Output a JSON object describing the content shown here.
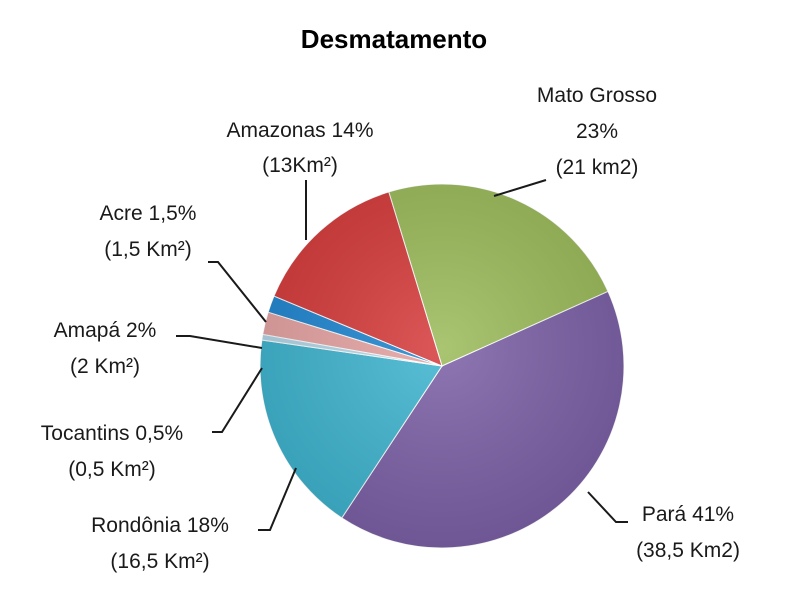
{
  "chart_data": {
    "type": "pie",
    "title": "Desmatamento",
    "slices": [
      {
        "label": "Mato Grosso",
        "percent": 23,
        "area_text": "(21 km2)",
        "percent_text": "23%",
        "color": "#9BBB59"
      },
      {
        "label": "Pará",
        "percent": 41,
        "area_text": "(38,5 Km2)",
        "percent_text": "41%",
        "color": "#7B5FA6"
      },
      {
        "label": "Rondônia",
        "percent": 18,
        "area_text": "(16,5 Km²)",
        "percent_text": "18%",
        "color": "#3DB4CF"
      },
      {
        "label": "Tocantins",
        "percent": 0.5,
        "area_text": "(0,5 Km²)",
        "percent_text": "0,5%",
        "color": "#B3D7E8"
      },
      {
        "label": "Amapá",
        "percent": 2,
        "area_text": "(2 Km²)",
        "percent_text": "2%",
        "color": "#E6A3A3"
      },
      {
        "label": "Acre",
        "percent": 1.5,
        "area_text": "(1,5 Km²)",
        "percent_text": "1,5%",
        "color": "#1F86D1"
      },
      {
        "label": "Amazonas",
        "percent": 14,
        "area_text": "(13Km²)",
        "percent_text": "14%",
        "color": "#D63A3A"
      }
    ],
    "labels": {
      "mato_grosso_l1": "Mato Grosso",
      "mato_grosso_l2": "23%",
      "mato_grosso_l3": "(21 km2)",
      "amazonas_l1": "Amazonas 14%",
      "amazonas_l2": "(13Km²)",
      "acre_l1": "Acre 1,5%",
      "acre_l2": "(1,5 Km²)",
      "amapa_l1": "Amapá 2%",
      "amapa_l2": "(2 Km²)",
      "tocantins_l1": "Tocantins 0,5%",
      "tocantins_l2": "(0,5 Km²)",
      "rondonia_l1": "Rondônia 18%",
      "rondonia_l2": "(16,5 Km²)",
      "para_l1": "Pará 41%",
      "para_l2": "(38,5 Km2)"
    }
  }
}
